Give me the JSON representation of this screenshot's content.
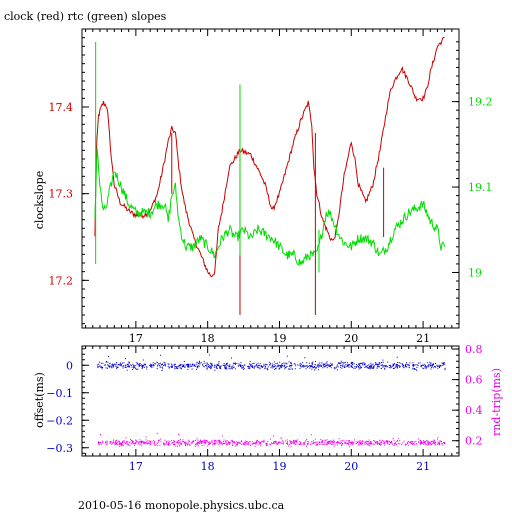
{
  "title": "clock (red) rtc (green) slopes",
  "footer": "2010-05-16 monopole.physics.ubc.ca",
  "colors": {
    "red": "#cc0000",
    "green": "#00dd00",
    "blue": "#0000cc",
    "magenta": "#ee00ee",
    "axis": "#000000"
  },
  "chart_data": [
    {
      "type": "line",
      "title": "clock (red) rtc (green) slopes",
      "ylabel": "clockslope",
      "xlim": [
        16.25,
        21.5
      ],
      "ylim": [
        17.145,
        17.49
      ],
      "y2lim": [
        18.935,
        19.285
      ],
      "xticks": [
        "17",
        "18",
        "19",
        "20",
        "21"
      ],
      "yticks": [
        "17.2",
        "17.3",
        "17.4"
      ],
      "y2ticks": [
        "19",
        "19.1",
        "19.2"
      ],
      "series": [
        {
          "name": "clock",
          "color": "red",
          "axis": "left",
          "x": [
            16.43,
            16.45,
            16.48,
            16.5,
            16.52,
            16.55,
            16.6,
            16.62,
            16.66,
            16.7,
            16.78,
            16.9,
            17.0,
            17.1,
            17.2,
            17.3,
            17.38,
            17.45,
            17.5,
            17.55,
            17.6,
            17.65,
            17.7,
            17.8,
            17.9,
            18.0,
            18.05,
            18.1,
            18.12,
            18.15,
            18.2,
            18.3,
            18.45,
            18.6,
            18.75,
            18.8,
            18.9,
            18.95,
            19.0,
            19.1,
            19.2,
            19.3,
            19.35,
            19.4,
            19.45,
            19.48,
            19.52,
            19.6,
            19.7,
            19.75,
            19.8,
            19.85,
            19.9,
            19.95,
            20.0,
            20.05,
            20.1,
            20.2,
            20.3,
            20.4,
            20.5,
            20.55,
            20.6,
            20.7,
            20.8,
            20.9,
            21.0,
            21.05,
            21.1,
            21.2,
            21.25,
            21.3
          ],
          "y": [
            17.25,
            17.35,
            17.39,
            17.395,
            17.4,
            17.405,
            17.4,
            17.38,
            17.34,
            17.31,
            17.29,
            17.28,
            17.275,
            17.275,
            17.28,
            17.3,
            17.33,
            17.36,
            17.375,
            17.37,
            17.33,
            17.3,
            17.28,
            17.25,
            17.23,
            17.21,
            17.205,
            17.21,
            17.23,
            17.26,
            17.28,
            17.33,
            17.35,
            17.345,
            17.32,
            17.31,
            17.28,
            17.29,
            17.3,
            17.33,
            17.36,
            17.385,
            17.395,
            17.405,
            17.38,
            17.33,
            17.3,
            17.27,
            17.25,
            17.245,
            17.26,
            17.29,
            17.32,
            17.34,
            17.36,
            17.34,
            17.31,
            17.29,
            17.31,
            17.35,
            17.4,
            17.42,
            17.43,
            17.445,
            17.43,
            17.41,
            17.41,
            17.42,
            17.44,
            17.47,
            17.475,
            17.48
          ]
        },
        {
          "name": "rtc",
          "color": "green",
          "axis": "right",
          "x": [
            16.43,
            16.46,
            16.5,
            16.55,
            16.6,
            16.62,
            16.65,
            16.7,
            16.75,
            16.8,
            16.9,
            17.0,
            17.1,
            17.2,
            17.3,
            17.4,
            17.45,
            17.5,
            17.55,
            17.6,
            17.65,
            17.7,
            17.8,
            17.9,
            18.0,
            18.1,
            18.2,
            18.3,
            18.4,
            18.5,
            18.6,
            18.7,
            18.8,
            18.9,
            19.0,
            19.1,
            19.2,
            19.3,
            19.4,
            19.5,
            19.55,
            19.6,
            19.65,
            19.7,
            19.75,
            19.8,
            19.85,
            19.9,
            20.0,
            20.1,
            20.2,
            20.3,
            20.4,
            20.5,
            20.6,
            20.7,
            20.8,
            20.9,
            21.0,
            21.1,
            21.2,
            21.25,
            21.3
          ],
          "y": [
            19.06,
            19.15,
            19.1,
            19.07,
            19.08,
            19.09,
            19.1,
            19.12,
            19.11,
            19.1,
            19.08,
            19.07,
            19.07,
            19.07,
            19.08,
            19.08,
            19.06,
            19.09,
            19.1,
            19.06,
            19.04,
            19.03,
            19.03,
            19.04,
            19.03,
            19.02,
            19.04,
            19.05,
            19.04,
            19.05,
            19.04,
            19.05,
            19.045,
            19.04,
            19.03,
            19.02,
            19.02,
            19.01,
            19.02,
            19.02,
            19.03,
            19.05,
            19.07,
            19.07,
            19.06,
            19.05,
            19.04,
            19.035,
            19.03,
            19.04,
            19.04,
            19.035,
            19.02,
            19.03,
            19.05,
            19.06,
            19.07,
            19.075,
            19.08,
            19.06,
            19.05,
            19.03,
            19.03
          ]
        }
      ],
      "spikes": [
        {
          "series": "rtc",
          "x": 16.44,
          "y_from": 19.01,
          "y_to": 19.27
        },
        {
          "series": "clock",
          "x": 17.5,
          "y_from": 17.3,
          "y_to": 17.37
        },
        {
          "series": "clock",
          "x": 18.45,
          "y_from": 17.16,
          "y_to": 17.35
        },
        {
          "series": "rtc",
          "x": 18.45,
          "y_from": 19.02,
          "y_to": 19.22
        },
        {
          "series": "clock",
          "x": 19.5,
          "y_from": 17.16,
          "y_to": 17.37
        },
        {
          "series": "rtc",
          "x": 19.55,
          "y_from": 19.0,
          "y_to": 19.05
        },
        {
          "series": "clock",
          "x": 20.45,
          "y_from": 17.25,
          "y_to": 17.33
        }
      ]
    },
    {
      "type": "scatter",
      "ylabel": "offset(ms)",
      "y2label": "rnd-trip(ms)",
      "xlim": [
        16.25,
        21.5
      ],
      "ylim": [
        -0.33,
        0.07
      ],
      "y2lim": [
        0.1,
        0.82
      ],
      "xticks": [
        "17",
        "18",
        "19",
        "20",
        "21"
      ],
      "yticks": [
        "0",
        "−0.1",
        "−0.2",
        "−0.3"
      ],
      "y2ticks": [
        "0.2",
        "0.4",
        "0.6",
        "0.8"
      ],
      "series": [
        {
          "name": "offset",
          "color": "blue",
          "axis": "left",
          "x_range": [
            16.45,
            21.3
          ],
          "level": 0.0,
          "spread": 0.012
        },
        {
          "name": "rnd-trip",
          "color": "magenta",
          "axis": "right",
          "x_range": [
            16.45,
            21.3
          ],
          "level": 0.19,
          "spread": 0.018
        }
      ]
    }
  ]
}
